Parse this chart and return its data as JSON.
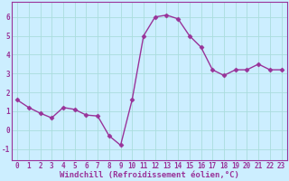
{
  "x": [
    0,
    1,
    2,
    3,
    4,
    5,
    6,
    7,
    8,
    9,
    10,
    11,
    12,
    13,
    14,
    15,
    16,
    17,
    18,
    19,
    20,
    21,
    22,
    23
  ],
  "y": [
    1.6,
    1.2,
    0.9,
    0.65,
    1.2,
    1.1,
    0.8,
    0.75,
    -0.3,
    -0.8,
    1.6,
    5.0,
    6.0,
    6.1,
    5.9,
    5.0,
    4.4,
    3.2,
    2.9,
    3.2,
    3.2,
    3.5,
    3.2,
    3.2
  ],
  "line_color": "#993399",
  "marker": "D",
  "markersize": 2.5,
  "linewidth": 1.0,
  "bg_color": "#cceeff",
  "grid_color": "#aadddd",
  "xlabel": "Windchill (Refroidissement éolien,°C)",
  "xlabel_color": "#993399",
  "xlabel_fontsize": 6.5,
  "tick_color": "#993399",
  "tick_fontsize": 5.5,
  "ytick_labels": [
    "-1",
    "0",
    "1",
    "2",
    "3",
    "4",
    "5",
    "6"
  ],
  "ytick_vals": [
    -1,
    0,
    1,
    2,
    3,
    4,
    5,
    6
  ],
  "ylim": [
    -1.6,
    6.8
  ],
  "xlim": [
    -0.5,
    23.5
  ],
  "xtick_vals": [
    0,
    1,
    2,
    3,
    4,
    5,
    6,
    7,
    8,
    9,
    10,
    11,
    12,
    13,
    14,
    15,
    16,
    17,
    18,
    19,
    20,
    21,
    22,
    23
  ],
  "xtick_labels": [
    "0",
    "1",
    "2",
    "3",
    "4",
    "5",
    "6",
    "7",
    "8",
    "9",
    "10",
    "11",
    "12",
    "13",
    "14",
    "15",
    "16",
    "17",
    "18",
    "19",
    "20",
    "21",
    "22",
    "23"
  ]
}
